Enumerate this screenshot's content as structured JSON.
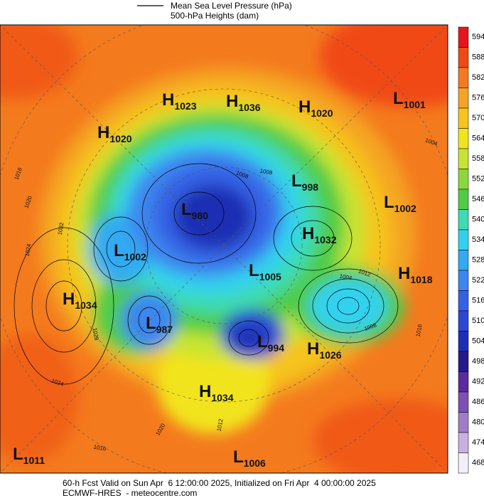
{
  "legend": {
    "items": [
      "Mean Sea Level Pressure (hPa)",
      "500-hPa Heights (dam)"
    ]
  },
  "colorbar": {
    "labels": [
      594,
      588,
      582,
      576,
      570,
      564,
      558,
      552,
      546,
      540,
      534,
      528,
      522,
      516,
      510,
      504,
      498,
      492,
      486,
      480,
      474,
      468
    ],
    "colors": [
      "#e8141c",
      "#f04a14",
      "#f47a1e",
      "#f4a424",
      "#f6c41c",
      "#f2e41c",
      "#c8e432",
      "#8cd83c",
      "#50cc46",
      "#3cdcb4",
      "#32d2ee",
      "#30aaf2",
      "#3c86ee",
      "#3462e4",
      "#2a48d2",
      "#1e2eb4",
      "#241a8c",
      "#5a2c9c",
      "#7c50b4",
      "#a07cc8",
      "#c8b0e0",
      "#f4eefa"
    ]
  },
  "centers": [
    {
      "type": "H",
      "value": 1023
    },
    {
      "type": "H",
      "value": 1036
    },
    {
      "type": "H",
      "value": 1020
    },
    {
      "type": "L",
      "value": 1001
    },
    {
      "type": "H",
      "value": 1020
    },
    {
      "type": "L",
      "value": 998
    },
    {
      "type": "L",
      "value": 1002
    },
    {
      "type": "L",
      "value": 980
    },
    {
      "type": "H",
      "value": 1032
    },
    {
      "type": "L",
      "value": 1002
    },
    {
      "type": "L",
      "value": 1005
    },
    {
      "type": "H",
      "value": 1018
    },
    {
      "type": "H",
      "value": 1034
    },
    {
      "type": "L",
      "value": 987
    },
    {
      "type": "L",
      "value": 994
    },
    {
      "type": "H",
      "value": 1026
    },
    {
      "type": "H",
      "value": 1034
    },
    {
      "type": "L",
      "value": 1011
    },
    {
      "type": "L",
      "value": 1006
    }
  ],
  "contour_labels": [
    1016,
    1020,
    1024,
    1028,
    1024,
    1016,
    1020,
    1012,
    1004,
    1008,
    1032,
    1008,
    1004,
    1012,
    1008,
    1016
  ],
  "footer": {
    "line1": "60-h Fcst Valid on Sun Apr  6 12:00:00 2025, Initialized on Fri Apr  4 00:00:00 2025",
    "line2": "ECMWF-HRES  - meteocentre.com"
  }
}
